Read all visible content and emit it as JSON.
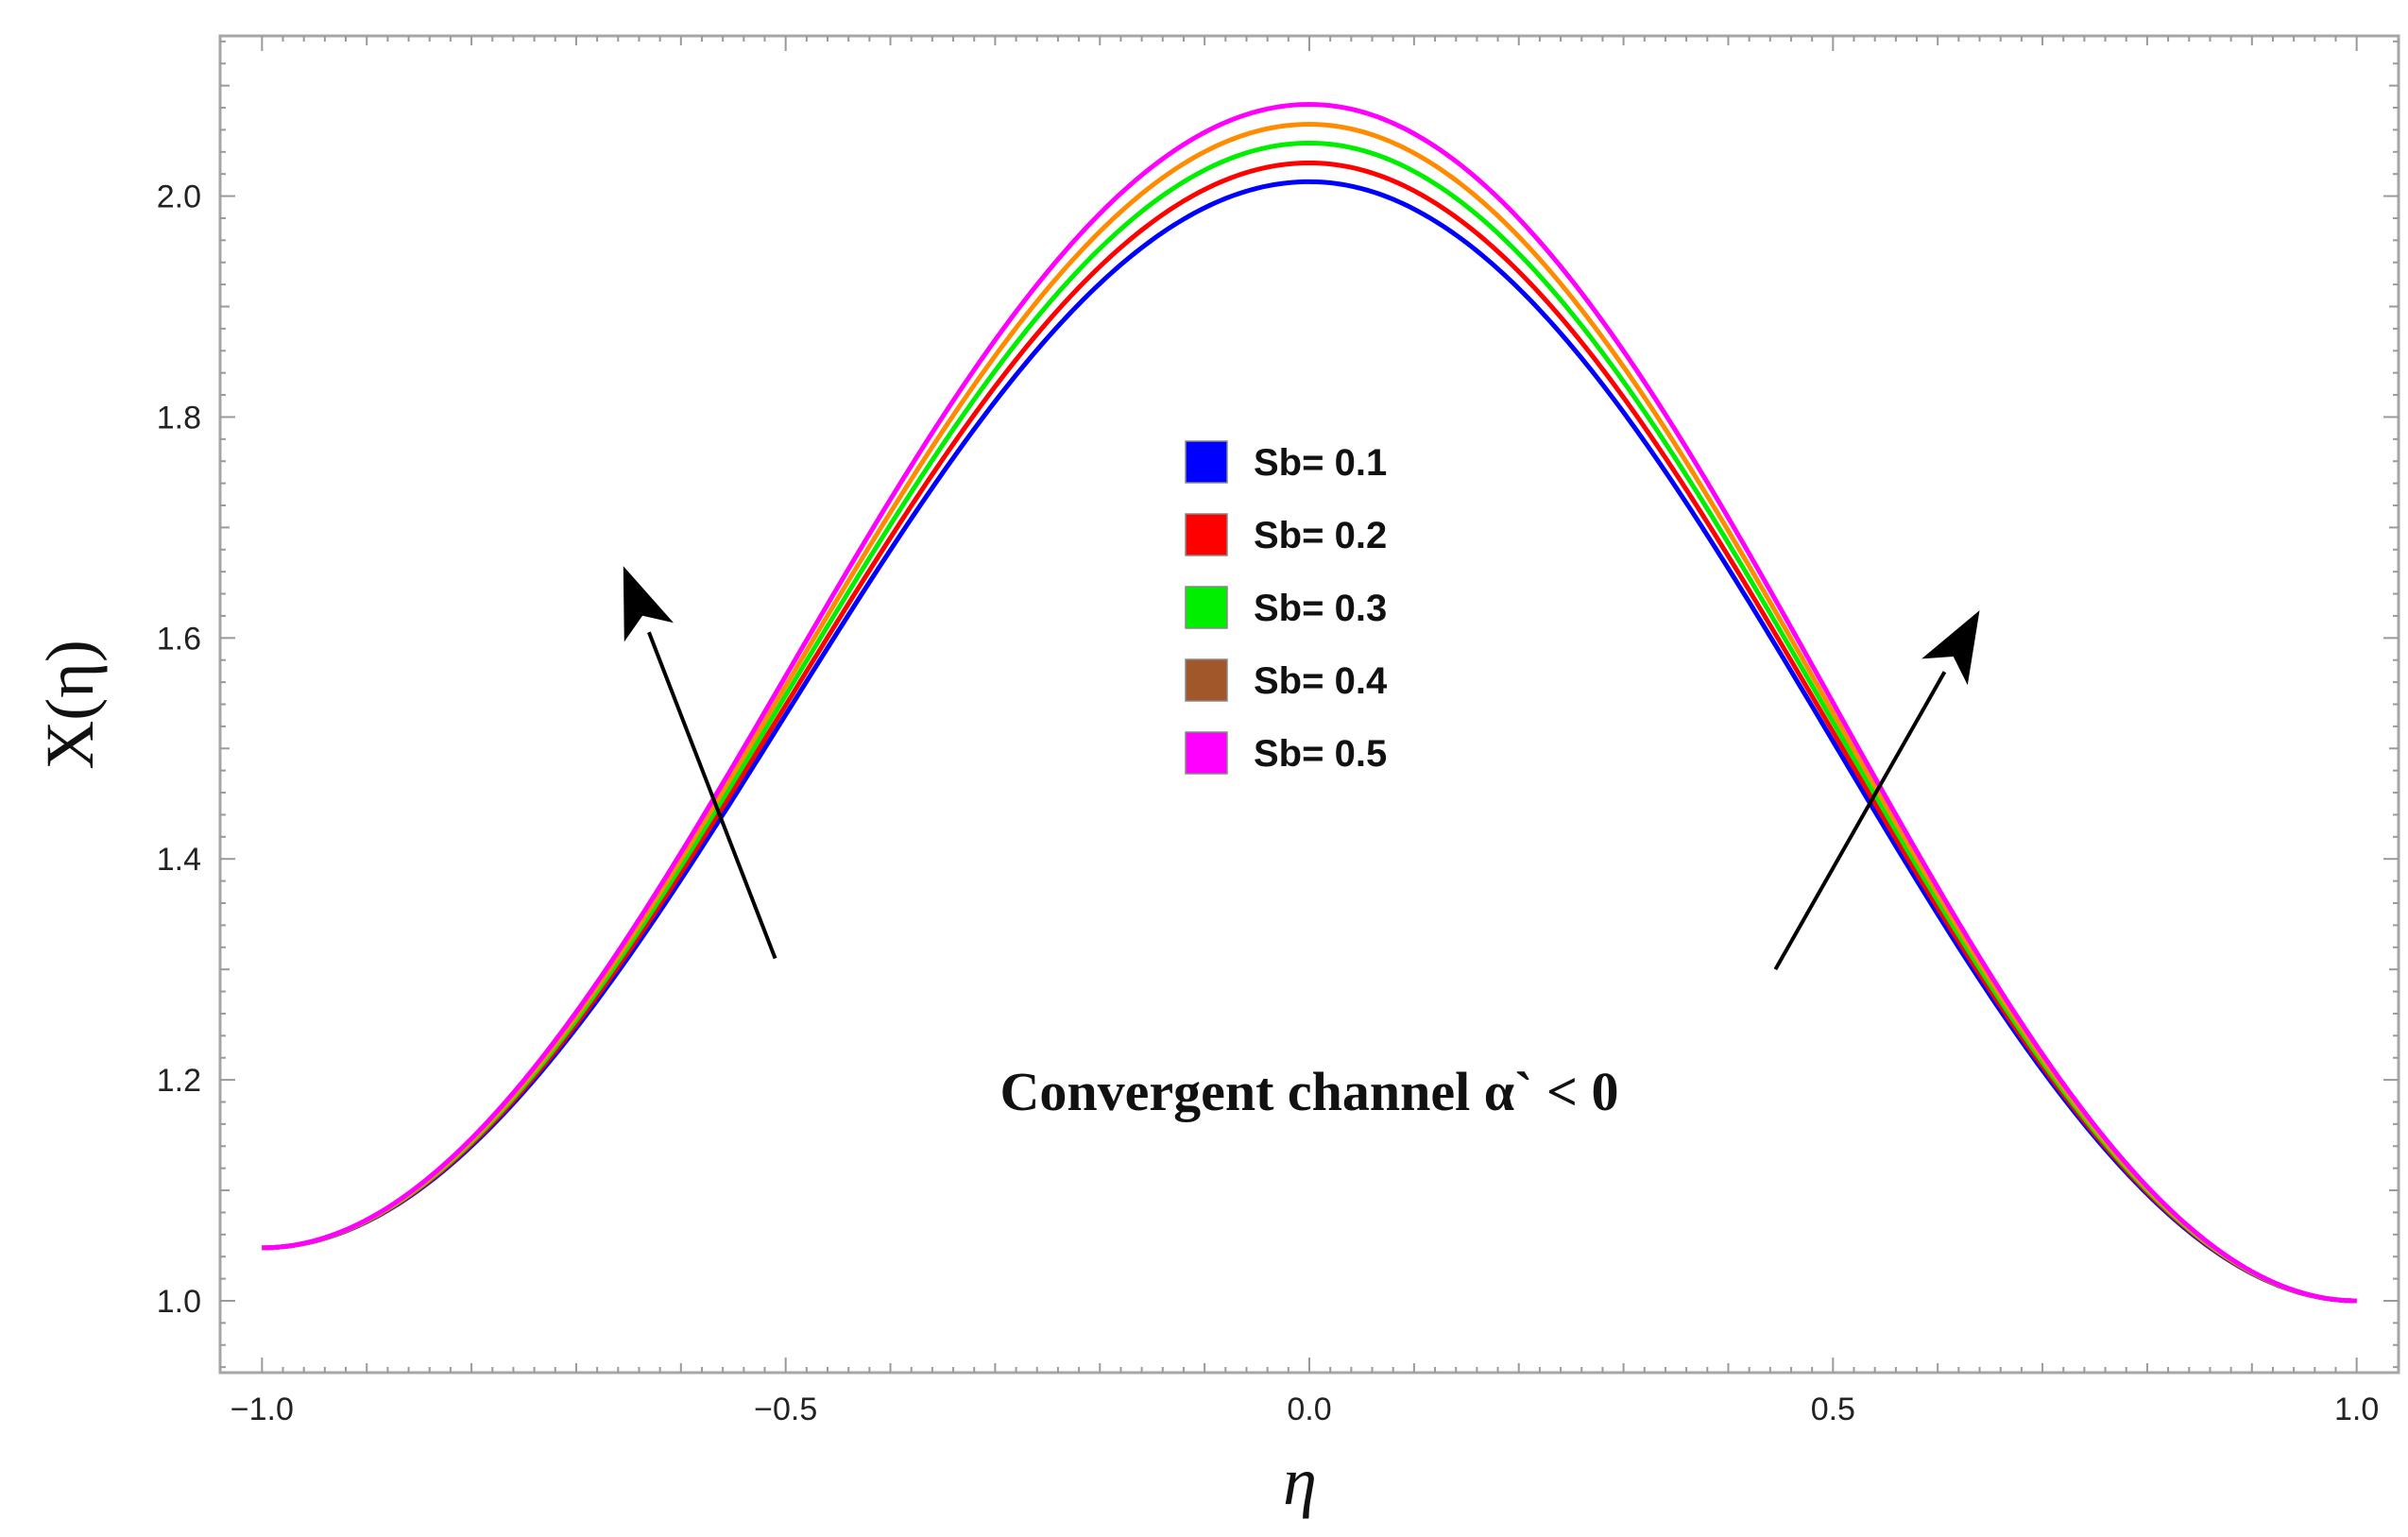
{
  "chart_data": {
    "type": "line",
    "title": "",
    "xlabel": "η",
    "ylabel": "X(η)",
    "xlim": [
      -1.04,
      1.04
    ],
    "ylim": [
      0.935,
      2.145
    ],
    "x_ticks": [
      -1.0,
      -0.5,
      0.0,
      0.5,
      1.0
    ],
    "x_tick_labels": [
      "−1.0",
      "−0.5",
      "0.0",
      "0.5",
      "1.0"
    ],
    "y_ticks": [
      1.0,
      1.2,
      1.4,
      1.6,
      1.8,
      2.0
    ],
    "y_tick_labels": [
      "1.0",
      "1.2",
      "1.4",
      "1.6",
      "1.8",
      "2.0"
    ],
    "grid": false,
    "legend_position": "center",
    "series": [
      {
        "name": "Sb= 0.1",
        "color": "#0000ff",
        "y_left": 1.048,
        "y_peak": 2.013,
        "y_right": 1.0
      },
      {
        "name": "Sb= 0.2",
        "color": "#ff0000",
        "y_left": 1.048,
        "y_peak": 2.03,
        "y_right": 1.0
      },
      {
        "name": "Sb= 0.3",
        "color": "#00ee00",
        "y_left": 1.048,
        "y_peak": 2.048,
        "y_right": 1.0
      },
      {
        "name": "Sb= 0.4",
        "color": "#ff8c00",
        "y_left": 1.048,
        "y_peak": 2.065,
        "y_right": 1.0
      },
      {
        "name": "Sb= 0.5",
        "color": "#ff00ff",
        "y_left": 1.048,
        "y_peak": 2.083,
        "y_right": 1.0
      }
    ],
    "legend_swatch_colors": [
      "#0000ff",
      "#ff0000",
      "#00ee00",
      "#a0582a",
      "#ff00ff"
    ],
    "annotations": [
      {
        "text": "Convergent channel α` <  0",
        "x": 0.0,
        "y": 1.19
      }
    ],
    "arrows": [
      {
        "from": [
          -0.51,
          1.31
        ],
        "to": [
          -0.655,
          1.665
        ]
      },
      {
        "from": [
          0.445,
          1.3
        ],
        "to": [
          0.64,
          1.625
        ]
      }
    ]
  }
}
